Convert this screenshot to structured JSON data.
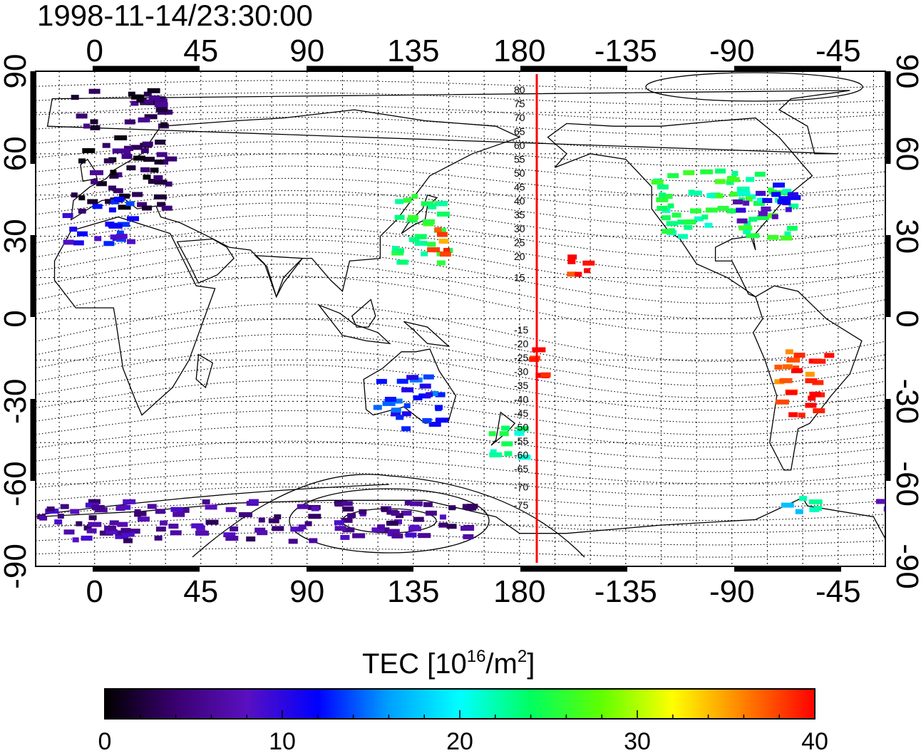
{
  "title": "1998-11-14/23:30:00",
  "map": {
    "lon_ticks_top": [
      "0",
      "45",
      "90",
      "135",
      "180",
      "-135",
      "-90",
      "-45"
    ],
    "lon_ticks_bottom": [
      "0",
      "45",
      "90",
      "135",
      "180",
      "-135",
      "-90",
      "-45"
    ],
    "lat_ticks_left": [
      "90",
      "60",
      "30",
      "0",
      "-30",
      "-60",
      "-90"
    ],
    "lat_ticks_right": [
      "90",
      "60",
      "30",
      "0",
      "-30",
      "-60",
      "-90"
    ],
    "contour_labels_north": [
      "80",
      "75",
      "70",
      "65",
      "60",
      "55",
      "50",
      "45",
      "40",
      "35",
      "30",
      "25",
      "20",
      "15"
    ],
    "contour_labels_south": [
      "-15",
      "-20",
      "-25",
      "-30",
      "-35",
      "-40",
      "-45",
      "-50",
      "-55",
      "-60",
      "-65",
      "-70",
      "-75"
    ],
    "terminator_color": "#ff0000",
    "grid": "dotted"
  },
  "colorbar": {
    "title_text": "TEC  [10",
    "title_exp1": "16",
    "title_mid": "/m",
    "title_exp2": "2",
    "title_end": "]",
    "ticks": [
      "0",
      "10",
      "20",
      "30",
      "40"
    ],
    "colors": [
      "#000000",
      "#3a0070",
      "#5a10c0",
      "#0000ff",
      "#00a0ff",
      "#00ffff",
      "#00ff60",
      "#60ff00",
      "#ffff00",
      "#ff8000",
      "#ff0000"
    ]
  },
  "chart_data": {
    "type": "heatmap",
    "title": "1998-11-14/23:30:00",
    "colorbar_label": "TEC [10^16/m^2]",
    "value_range": [
      0,
      40
    ],
    "lon_range": [
      -25,
      58
    ],
    "lat_range": [
      -90,
      90
    ],
    "regions": [
      {
        "lon_range": [
          -10,
          30
        ],
        "lat_range": [
          40,
          85
        ],
        "tec": 3
      },
      {
        "lon_range": [
          -15,
          15
        ],
        "lat_range": [
          28,
          45
        ],
        "tec": 11
      },
      {
        "lon_range": [
          125,
          148
        ],
        "lat_range": [
          20,
          48
        ],
        "tec": 24
      },
      {
        "lon_range": [
          140,
          148
        ],
        "lat_range": [
          22,
          35
        ],
        "tec": 36
      },
      {
        "lon_range": [
          -125,
          -65
        ],
        "lat_range": [
          30,
          55
        ],
        "tec": 24
      },
      {
        "lon_range": [
          -90,
          -65
        ],
        "lat_range": [
          35,
          50
        ],
        "tec": 10
      },
      {
        "lon_range": [
          -160,
          -150
        ],
        "lat_range": [
          15,
          25
        ],
        "tec": 40
      },
      {
        "lon_range": [
          -178,
          -170
        ],
        "lat_range": [
          -20,
          -10
        ],
        "tec": 40
      },
      {
        "lon_range": [
          166,
          180
        ],
        "lat_range": [
          -50,
          -35
        ],
        "tec": 23
      },
      {
        "lon_range": [
          -72,
          -50
        ],
        "lat_range": [
          -35,
          -10
        ],
        "tec": 38
      },
      {
        "lon_range": [
          -70,
          -55
        ],
        "lat_range": [
          -70,
          -62
        ],
        "tec": 20
      },
      {
        "lon_range": [
          115,
          145
        ],
        "lat_range": [
          -40,
          -20
        ],
        "tec": 13
      },
      {
        "lon_range": [
          -30,
          160
        ],
        "lat_range": [
          -80,
          -65
        ],
        "tec": 6
      }
    ]
  }
}
